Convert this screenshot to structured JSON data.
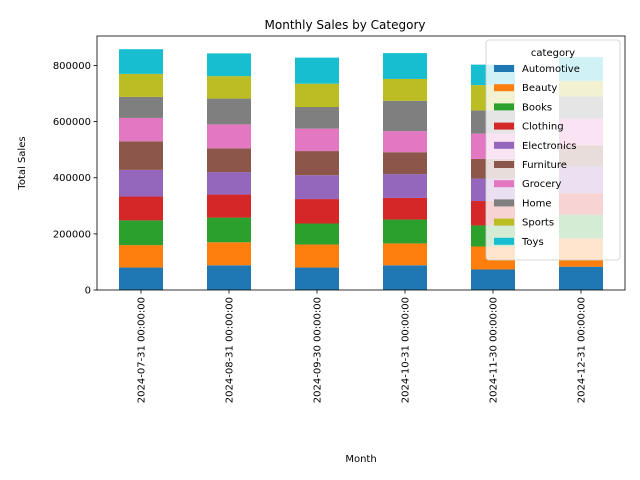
{
  "chart_data": {
    "type": "bar",
    "stacked": true,
    "title": "Monthly Sales by Category",
    "xlabel": "Month",
    "ylabel": "Total Sales",
    "ylim": [
      0,
      905000
    ],
    "yticks": [
      0,
      200000,
      400000,
      600000,
      800000
    ],
    "categories": [
      "2024-07-31 00:00:00",
      "2024-08-31 00:00:00",
      "2024-09-30 00:00:00",
      "2024-10-31 00:00:00",
      "2024-11-30 00:00:00",
      "2024-12-31 00:00:00"
    ],
    "legend": {
      "title": "category",
      "placement": "top-right"
    },
    "series": [
      {
        "name": "Automotive",
        "color": "#1f77b4",
        "values": [
          80000,
          88000,
          80000,
          88000,
          73000,
          83000
        ]
      },
      {
        "name": "Beauty",
        "color": "#ff7f0e",
        "values": [
          80000,
          82000,
          82000,
          78000,
          82000,
          100000
        ]
      },
      {
        "name": "Books",
        "color": "#2ca02c",
        "values": [
          88000,
          88000,
          75000,
          85000,
          75000,
          85000
        ]
      },
      {
        "name": "Clothing",
        "color": "#d62728",
        "values": [
          85000,
          82000,
          87000,
          77000,
          87000,
          77000
        ]
      },
      {
        "name": "Electronics",
        "color": "#9467bd",
        "values": [
          95000,
          80000,
          85000,
          85000,
          80000,
          95000
        ]
      },
      {
        "name": "Furniture",
        "color": "#8c564b",
        "values": [
          102000,
          85000,
          86000,
          78000,
          70000,
          75000
        ]
      },
      {
        "name": "Grocery",
        "color": "#e377c2",
        "values": [
          83000,
          85000,
          80000,
          75000,
          90000,
          95000
        ]
      },
      {
        "name": "Home",
        "color": "#7f7f7f",
        "values": [
          75000,
          92000,
          77000,
          108000,
          83000,
          80000
        ]
      },
      {
        "name": "Sports",
        "color": "#bcbd22",
        "values": [
          82000,
          80000,
          83000,
          78000,
          90000,
          55000
        ]
      },
      {
        "name": "Toys",
        "color": "#17becf",
        "values": [
          88000,
          81000,
          93000,
          92000,
          73000,
          85000
        ]
      }
    ]
  }
}
